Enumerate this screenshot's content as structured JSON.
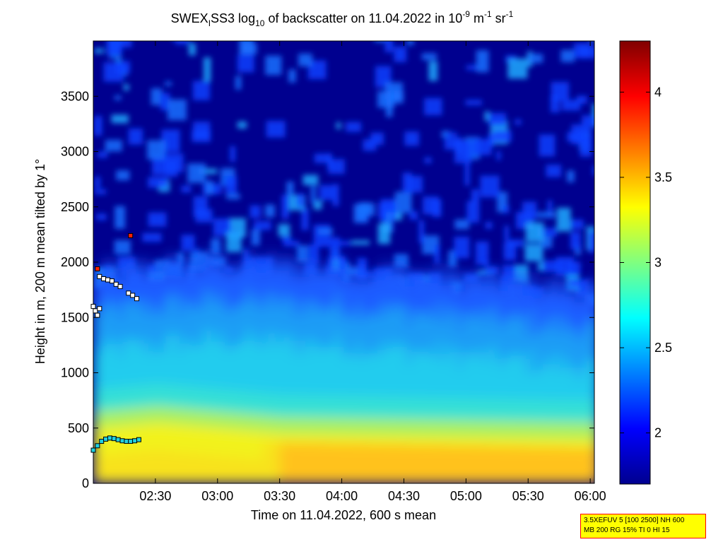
{
  "chart_data": {
    "type": "heatmap",
    "title": {
      "prefix": "SWEX",
      "prefix_sub": "I",
      "mid": "SS3 log",
      "mid_sub": "10",
      "tail": " of backscatter on 11.04.2022 in 10",
      "exp1": "-9",
      "unit1": " m",
      "exp2": "-1",
      "unit2": " sr",
      "exp3": "-1"
    },
    "xlabel": "Time on 11.04.2022, 600 s mean",
    "ylabel": "Height in m, 200 m mean tilted by 1°",
    "xlim": [
      "02:00",
      "06:02"
    ],
    "ylim": [
      0,
      4000
    ],
    "x_ticks": [
      "02:30",
      "03:00",
      "03:30",
      "04:00",
      "04:30",
      "05:00",
      "05:30",
      "06:00"
    ],
    "y_ticks": [
      0,
      500,
      1000,
      1500,
      2000,
      2500,
      3000,
      3500
    ],
    "colorbar": {
      "range": [
        1.7,
        4.3
      ],
      "ticks": [
        "2",
        "2.5",
        "3",
        "3.5",
        "4"
      ],
      "colormap": "jet"
    },
    "layers": {
      "surface_layer_top_m": {
        "02:00": 500,
        "02:30": 550,
        "03:30": 450,
        "05:00": 420,
        "06:00": 400
      },
      "aerosol_layer_top_m": {
        "02:00": 1700,
        "03:00": 1800,
        "04:00": 1750,
        "05:00": 1650,
        "06:00": 1550
      }
    },
    "markers": {
      "boundary_layer_low": [
        [
          "02:00",
          300
        ],
        [
          "02:02",
          340
        ],
        [
          "02:04",
          380
        ],
        [
          "02:06",
          400
        ],
        [
          "02:08",
          410
        ],
        [
          "02:10",
          405
        ],
        [
          "02:12",
          395
        ],
        [
          "02:14",
          385
        ],
        [
          "02:16",
          380
        ],
        [
          "02:18",
          380
        ],
        [
          "02:20",
          385
        ],
        [
          "02:22",
          395
        ]
      ],
      "boundary_layer_high": [
        [
          "02:03",
          1870
        ],
        [
          "02:05",
          1850
        ],
        [
          "02:07",
          1840
        ],
        [
          "02:09",
          1830
        ],
        [
          "02:11",
          1800
        ],
        [
          "02:13",
          1780
        ],
        [
          "02:17",
          1720
        ],
        [
          "02:19",
          1700
        ],
        [
          "02:21",
          1670
        ],
        [
          "02:00",
          1600
        ],
        [
          "02:01",
          1560
        ],
        [
          "02:02",
          1520
        ],
        [
          "02:03",
          1580
        ]
      ],
      "red_points": [
        [
          "02:02",
          1940
        ],
        [
          "02:18",
          2240
        ]
      ]
    },
    "info_box": {
      "line1": "3.5XEFUV 5 [100 2500] NH 600",
      "line2": "MB 200 RG 15% TI 0 HI 15"
    }
  }
}
